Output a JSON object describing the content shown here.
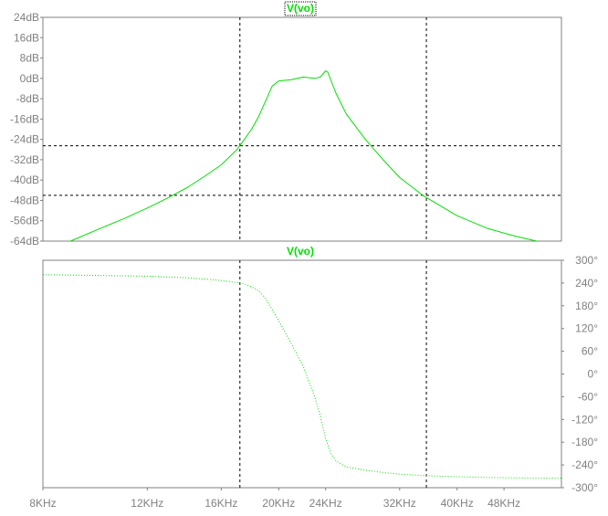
{
  "colors": {
    "trace": "#00e000",
    "axis_text": "#808080",
    "frame": "#808080",
    "cursor": "#000000"
  },
  "chart_data": [
    {
      "type": "line",
      "title": "V(vo)",
      "x_scale": "log",
      "x_unit": "Hz",
      "xlim": [
        8000,
        60000
      ],
      "ylim": [
        -64,
        24
      ],
      "y_unit": "dB",
      "y_ticks": [
        "24dB",
        "16dB",
        "8dB",
        "0dB",
        "-8dB",
        "-16dB",
        "-24dB",
        "-32dB",
        "-40dB",
        "-48dB",
        "-56dB",
        "-64dB"
      ],
      "cursors": {
        "x": [
          17200,
          35500
        ],
        "y": [
          -26.5,
          -46
        ]
      },
      "series": [
        {
          "style": "solid",
          "x": [
            8900,
            10000,
            11000,
            12000,
            13000,
            14000,
            15000,
            16000,
            17000,
            17500,
            18000,
            18500,
            19000,
            19500,
            20000,
            21000,
            22000,
            23000,
            23500,
            24000,
            24200,
            25000,
            26000,
            28000,
            30000,
            32000,
            35000,
            40000,
            45000,
            50000,
            54500
          ],
          "y": [
            -64,
            -59,
            -55,
            -51,
            -47,
            -43,
            -38.5,
            -34,
            -28,
            -24,
            -20,
            -15,
            -9,
            -3,
            -1,
            -0.5,
            0.5,
            0,
            0.5,
            3,
            2.5,
            -6,
            -14,
            -24,
            -32,
            -39,
            -46,
            -54,
            -59,
            -62,
            -64
          ]
        }
      ]
    },
    {
      "type": "line",
      "title": "V(vo)",
      "x_scale": "log",
      "x_unit": "Hz",
      "xlim": [
        8000,
        60000
      ],
      "ylim": [
        -300,
        300
      ],
      "y_unit": "deg",
      "y_ticks": [
        "300°",
        "240°",
        "180°",
        "120°",
        "60°",
        "0°",
        "-60°",
        "-120°",
        "-180°",
        "-240°",
        "-300°"
      ],
      "x_ticks": [
        "8KHz",
        "12KHz",
        "16KHz",
        "20KHz",
        "24KHz",
        "32KHz",
        "40KHz",
        "48KHz"
      ],
      "cursors": {
        "x": [
          17200,
          35500
        ]
      },
      "series": [
        {
          "style": "dotted",
          "x": [
            8000,
            9000,
            10000,
            12000,
            14000,
            15500,
            16500,
            17500,
            18000,
            18500,
            19000,
            19500,
            20000,
            21000,
            22000,
            22500,
            23000,
            23500,
            24000,
            24500,
            25000,
            26000,
            28000,
            30000,
            32000,
            35000,
            40000,
            45000,
            50000,
            60000
          ],
          "y": [
            262,
            261,
            260,
            258,
            254,
            249,
            244,
            238,
            230,
            220,
            200,
            170,
            140,
            80,
            20,
            -20,
            -60,
            -110,
            -170,
            -210,
            -230,
            -245,
            -254,
            -260,
            -264,
            -268,
            -271,
            -273,
            -274,
            -275
          ]
        }
      ]
    }
  ]
}
